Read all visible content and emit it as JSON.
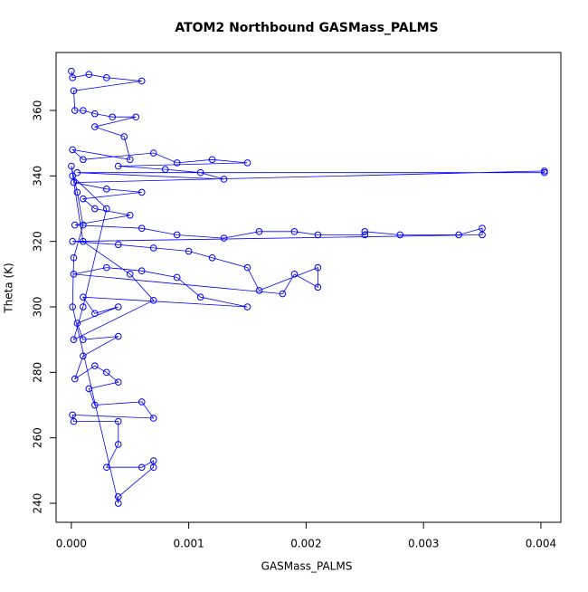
{
  "chart_data": {
    "type": "line",
    "title": "ATOM2 Northbound GASMass_PALMS",
    "x_label": "GASMass_PALMS",
    "y_label": "Theta (K)",
    "markers": "circle",
    "color": "#0000ff",
    "grid": false,
    "xlim": [
      -0.00013,
      0.00417
    ],
    "ylim": [
      234.2,
      377.7
    ],
    "xticks": [
      {
        "value": 0,
        "label": "0.000"
      },
      {
        "value": 0.001,
        "label": "0.001"
      },
      {
        "value": 0.002,
        "label": "0.002"
      },
      {
        "value": 0.003,
        "label": "0.003"
      },
      {
        "value": 0.004,
        "label": "0.004"
      }
    ],
    "yticks": [
      240,
      260,
      280,
      300,
      320,
      340,
      360
    ],
    "x": [
      0,
      1e-05,
      0.00015,
      0.0003,
      0.0006,
      2e-05,
      3e-05,
      0.0001,
      0.0002,
      0.00035,
      0.00055,
      0.0002,
      0.00045,
      0.0005,
      1e-05,
      0.0001,
      0.0007,
      0.0009,
      0.0012,
      0.0015,
      0.0004,
      0.0008,
      0.0011,
      0.0013,
      5e-05,
      0.00403,
      0.00403,
      2e-05,
      0.0003,
      0.0006,
      0.0001,
      0.0002,
      0.0005,
      3e-05,
      0.0006,
      0.0009,
      0.0013,
      0.0016,
      0.0019,
      0.0021,
      0.0025,
      0.0025,
      0.0028,
      0.0033,
      0.0035,
      0.0035,
      1e-05,
      0.0004,
      0.0007,
      0.001,
      0.0012,
      0.0015,
      0.0016,
      0.0021,
      0.0021,
      0.0019,
      0.0018,
      2e-05,
      0.0003,
      0.0006,
      0.0009,
      0.0011,
      0.0015,
      0.0001,
      0.0002,
      0.0004,
      5e-05,
      0.0001,
      0.0004,
      0.0001,
      3e-05,
      0.0002,
      0.0003,
      0.0004,
      0.00015,
      0.0002,
      0.0006,
      0.0007,
      1e-05,
      2e-05,
      0.0004,
      0.0004,
      0.0003,
      0.0006,
      0.0007,
      0.0007,
      0.0004,
      0.0004,
      1e-05,
      2e-05,
      0.0001,
      5e-05,
      0,
      0.0001,
      0.0005,
      0.0007,
      2e-05,
      0.0001,
      0.0003,
      1e-05
    ],
    "y": [
      372,
      370,
      371,
      370,
      369,
      366,
      360,
      360,
      359,
      358,
      358,
      355,
      352,
      345,
      348,
      345,
      347,
      344,
      345,
      344,
      343,
      342,
      341,
      339,
      341,
      341,
      341.5,
      338,
      336,
      335,
      333,
      330,
      328,
      325,
      324,
      322,
      321,
      323,
      323,
      322,
      322,
      323,
      322,
      322,
      324,
      322,
      320,
      319,
      318,
      317,
      315,
      312,
      305,
      312,
      306,
      310,
      304,
      310,
      312,
      311,
      309,
      303,
      300,
      303,
      298,
      300,
      295,
      290,
      291,
      285,
      278,
      282,
      280,
      277,
      275,
      270,
      271,
      266,
      267,
      265,
      265,
      258,
      251,
      251,
      253,
      251,
      242,
      240,
      300,
      315,
      325,
      335,
      343,
      320,
      310,
      302,
      290,
      300,
      330,
      340
    ]
  }
}
